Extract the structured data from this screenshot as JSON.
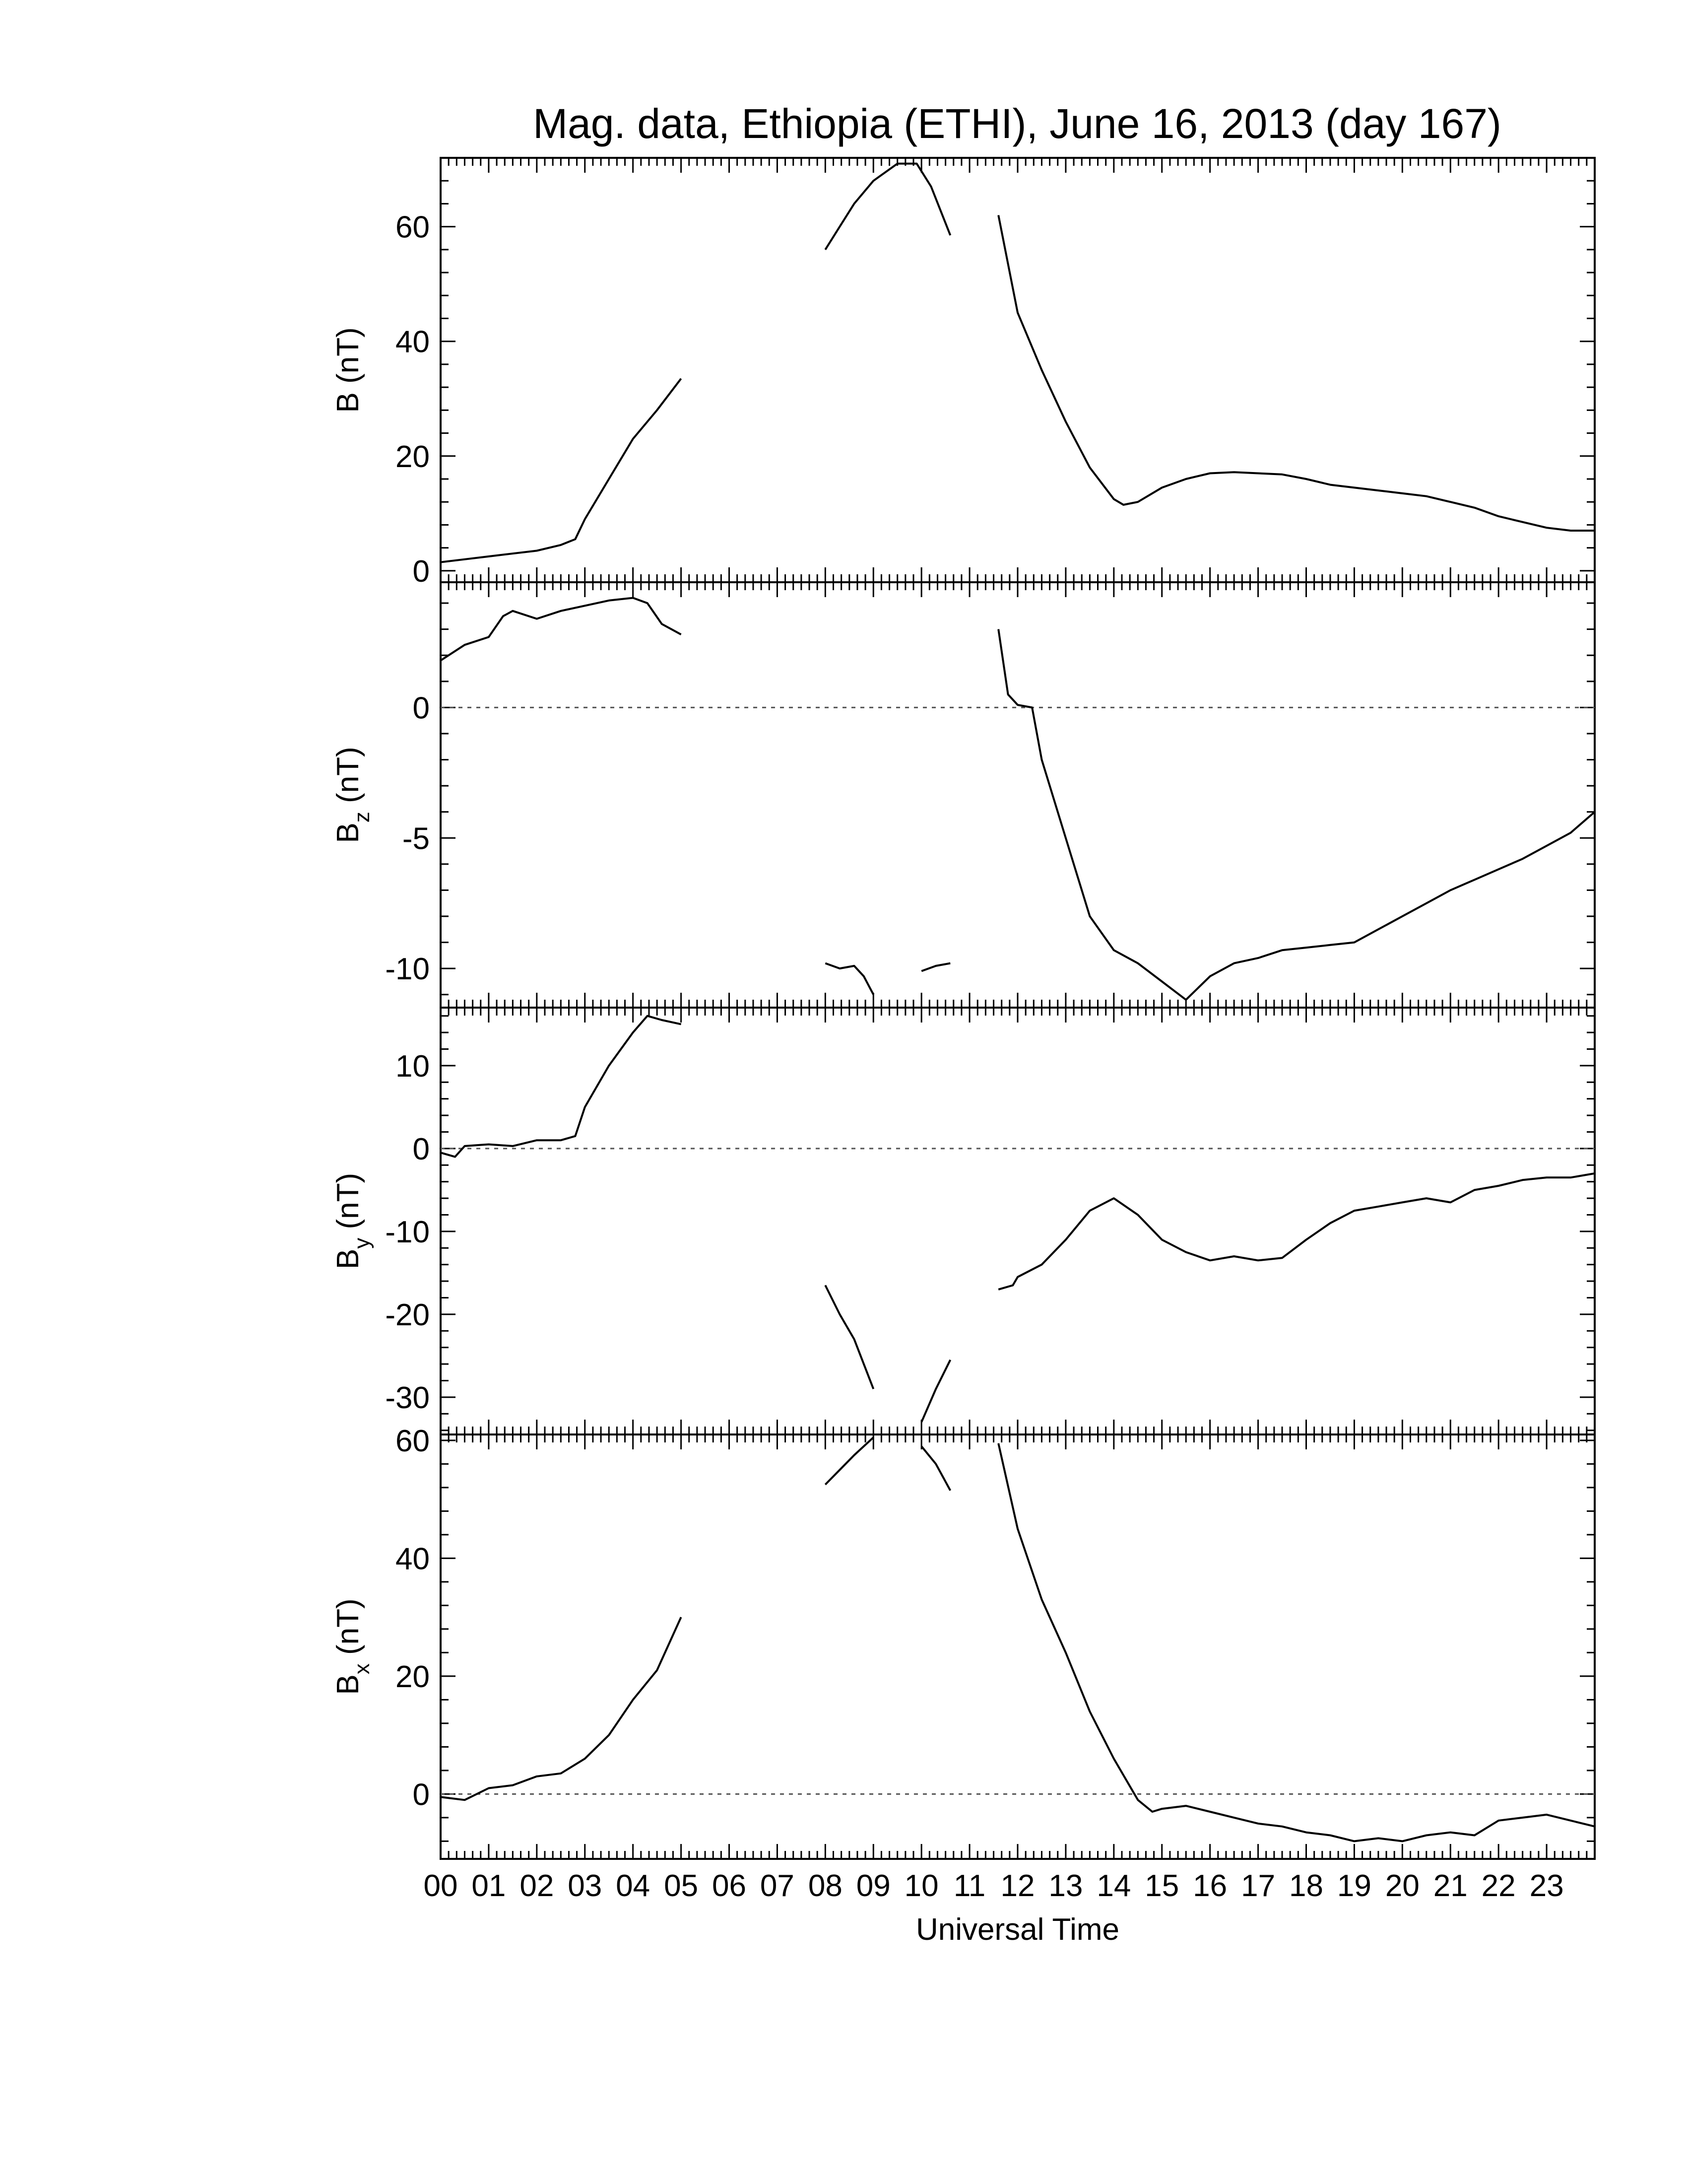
{
  "chart_data": {
    "type": "line",
    "title": "Mag. data, Ethiopia (ETHI), June 16, 2013 (day 167)",
    "xlabel": "Universal Time",
    "x_ticks": [
      "00",
      "01",
      "02",
      "03",
      "04",
      "05",
      "06",
      "07",
      "08",
      "09",
      "10",
      "11",
      "12",
      "13",
      "14",
      "15",
      "16",
      "17",
      "18",
      "19",
      "20",
      "21",
      "22",
      "23"
    ],
    "xlim": [
      0,
      24
    ],
    "panels": [
      {
        "name": "B",
        "ylabel": "B (nT)",
        "ylabel_main": "B (nT)",
        "ylabel_sub": "",
        "ylim": [
          -2,
          72
        ],
        "yticks": [
          0,
          20,
          40,
          60
        ],
        "zero_line": false,
        "segments": [
          [
            [
              0,
              1.5
            ],
            [
              0.5,
              2.0
            ],
            [
              1.0,
              2.5
            ],
            [
              1.5,
              3.0
            ],
            [
              2.0,
              3.5
            ],
            [
              2.5,
              4.5
            ],
            [
              2.8,
              5.5
            ],
            [
              3.0,
              9.0
            ],
            [
              3.5,
              16.0
            ],
            [
              4.0,
              23.0
            ],
            [
              4.5,
              28.0
            ],
            [
              5.0,
              33.5
            ]
          ],
          [
            [
              8.0,
              56.0
            ],
            [
              8.3,
              60.0
            ],
            [
              8.6,
              64.0
            ],
            [
              9.0,
              68.0
            ],
            [
              9.5,
              71.0
            ],
            [
              9.9,
              71.0
            ],
            [
              10.2,
              67.0
            ],
            [
              10.6,
              58.5
            ]
          ],
          [
            [
              11.6,
              62.0
            ],
            [
              12.0,
              45.0
            ],
            [
              12.5,
              35.0
            ],
            [
              13.0,
              26.0
            ],
            [
              13.5,
              18.0
            ],
            [
              14.0,
              12.5
            ],
            [
              14.2,
              11.5
            ],
            [
              14.5,
              12.0
            ],
            [
              15.0,
              14.5
            ],
            [
              15.5,
              16.0
            ],
            [
              16.0,
              17.0
            ],
            [
              16.5,
              17.2
            ],
            [
              17.0,
              17.0
            ],
            [
              17.5,
              16.8
            ],
            [
              18.0,
              16.0
            ],
            [
              18.5,
              15.0
            ],
            [
              19.0,
              14.5
            ],
            [
              19.5,
              14.0
            ],
            [
              20.0,
              13.5
            ],
            [
              20.5,
              13.0
            ],
            [
              21.0,
              12.0
            ],
            [
              21.5,
              11.0
            ],
            [
              22.0,
              9.5
            ],
            [
              22.5,
              8.5
            ],
            [
              23.0,
              7.5
            ],
            [
              23.5,
              7.0
            ],
            [
              24.0,
              7.0
            ]
          ]
        ]
      },
      {
        "name": "Bz",
        "ylabel": "Bz (nT)",
        "ylabel_main": "B",
        "ylabel_sub": "z",
        "ylabel_rest": " (nT)",
        "ylim": [
          -11.5,
          4.8
        ],
        "yticks": [
          -10,
          -5,
          0
        ],
        "zero_line": true,
        "segments": [
          [
            [
              0,
              1.8
            ],
            [
              0.5,
              2.4
            ],
            [
              1.0,
              2.7
            ],
            [
              1.3,
              3.5
            ],
            [
              1.5,
              3.7
            ],
            [
              2.0,
              3.4
            ],
            [
              2.5,
              3.7
            ],
            [
              3.0,
              3.9
            ],
            [
              3.5,
              4.1
            ],
            [
              4.0,
              4.2
            ],
            [
              4.3,
              4.0
            ],
            [
              4.6,
              3.2
            ],
            [
              5.0,
              2.8
            ]
          ],
          [
            [
              8.0,
              -9.8
            ],
            [
              8.3,
              -10.0
            ],
            [
              8.6,
              -9.9
            ],
            [
              8.8,
              -10.3
            ],
            [
              9.0,
              -11.0
            ]
          ],
          [
            [
              10.0,
              -10.1
            ],
            [
              10.3,
              -9.9
            ],
            [
              10.6,
              -9.8
            ]
          ],
          [
            [
              11.6,
              3.0
            ],
            [
              11.8,
              0.5
            ],
            [
              12.0,
              0.1
            ],
            [
              12.3,
              0.0
            ],
            [
              12.5,
              -2.0
            ],
            [
              13.0,
              -5.0
            ],
            [
              13.5,
              -8.0
            ],
            [
              14.0,
              -9.3
            ],
            [
              14.5,
              -9.8
            ],
            [
              15.0,
              -10.5
            ],
            [
              15.5,
              -11.2
            ],
            [
              16.0,
              -10.3
            ],
            [
              16.5,
              -9.8
            ],
            [
              17.0,
              -9.6
            ],
            [
              17.5,
              -9.3
            ],
            [
              18.0,
              -9.2
            ],
            [
              18.5,
              -9.1
            ],
            [
              19.0,
              -9.0
            ],
            [
              19.5,
              -8.5
            ],
            [
              20.0,
              -8.0
            ],
            [
              20.5,
              -7.5
            ],
            [
              21.0,
              -7.0
            ],
            [
              21.5,
              -6.6
            ],
            [
              22.0,
              -6.2
            ],
            [
              22.5,
              -5.8
            ],
            [
              23.0,
              -5.3
            ],
            [
              23.5,
              -4.8
            ],
            [
              24.0,
              -4.0
            ]
          ]
        ]
      },
      {
        "name": "By",
        "ylabel": "By (nT)",
        "ylabel_main": "B",
        "ylabel_sub": "y",
        "ylabel_rest": " (nT)",
        "ylim": [
          -34.5,
          17
        ],
        "yticks": [
          -30,
          -20,
          -10,
          0,
          10
        ],
        "zero_line": true,
        "segments": [
          [
            [
              0,
              -0.5
            ],
            [
              0.3,
              -1.0
            ],
            [
              0.5,
              0.3
            ],
            [
              1.0,
              0.5
            ],
            [
              1.5,
              0.3
            ],
            [
              2.0,
              1.0
            ],
            [
              2.5,
              1.0
            ],
            [
              2.8,
              1.5
            ],
            [
              3.0,
              5.0
            ],
            [
              3.5,
              10.0
            ],
            [
              4.0,
              14.0
            ],
            [
              4.3,
              16.0
            ],
            [
              4.6,
              15.5
            ],
            [
              5.0,
              15.0
            ]
          ],
          [
            [
              8.0,
              -16.5
            ],
            [
              8.3,
              -20.0
            ],
            [
              8.6,
              -23.0
            ],
            [
              9.0,
              -29.0
            ]
          ],
          [
            [
              10.0,
              -33.0
            ],
            [
              10.3,
              -29.0
            ],
            [
              10.6,
              -25.5
            ]
          ],
          [
            [
              11.6,
              -17.0
            ],
            [
              11.9,
              -16.5
            ],
            [
              12.0,
              -15.5
            ],
            [
              12.5,
              -14.0
            ],
            [
              13.0,
              -11.0
            ],
            [
              13.5,
              -7.5
            ],
            [
              14.0,
              -6.0
            ],
            [
              14.5,
              -8.0
            ],
            [
              15.0,
              -11.0
            ],
            [
              15.5,
              -12.5
            ],
            [
              16.0,
              -13.5
            ],
            [
              16.5,
              -13.0
            ],
            [
              17.0,
              -13.5
            ],
            [
              17.5,
              -13.2
            ],
            [
              18.0,
              -11.0
            ],
            [
              18.5,
              -9.0
            ],
            [
              19.0,
              -7.5
            ],
            [
              19.5,
              -7.0
            ],
            [
              20.0,
              -6.5
            ],
            [
              20.5,
              -6.0
            ],
            [
              21.0,
              -6.5
            ],
            [
              21.5,
              -5.0
            ],
            [
              22.0,
              -4.5
            ],
            [
              22.5,
              -3.8
            ],
            [
              23.0,
              -3.5
            ],
            [
              23.5,
              -3.5
            ],
            [
              24.0,
              -3.0
            ]
          ]
        ]
      },
      {
        "name": "Bx",
        "ylabel": "Bx (nT)",
        "ylabel_main": "B",
        "ylabel_sub": "x",
        "ylabel_rest": " (nT)",
        "ylim": [
          -11,
          61
        ],
        "yticks": [
          0,
          20,
          40,
          60
        ],
        "zero_line": true,
        "segments": [
          [
            [
              0,
              -0.5
            ],
            [
              0.5,
              -1.0
            ],
            [
              1.0,
              1.0
            ],
            [
              1.5,
              1.5
            ],
            [
              2.0,
              3.0
            ],
            [
              2.5,
              3.5
            ],
            [
              3.0,
              6.0
            ],
            [
              3.5,
              10.0
            ],
            [
              4.0,
              16.0
            ],
            [
              4.5,
              21.0
            ],
            [
              5.0,
              30.0
            ]
          ],
          [
            [
              8.0,
              52.5
            ],
            [
              8.3,
              55.0
            ],
            [
              8.6,
              57.5
            ],
            [
              9.0,
              60.5
            ]
          ],
          [
            [
              10.0,
              59.0
            ],
            [
              10.3,
              56.0
            ],
            [
              10.6,
              51.5
            ]
          ],
          [
            [
              11.6,
              59.5
            ],
            [
              12.0,
              45.0
            ],
            [
              12.5,
              33.0
            ],
            [
              13.0,
              24.0
            ],
            [
              13.5,
              14.0
            ],
            [
              14.0,
              6.0
            ],
            [
              14.5,
              -1.0
            ],
            [
              14.8,
              -3.0
            ],
            [
              15.0,
              -2.5
            ],
            [
              15.5,
              -2.0
            ],
            [
              16.0,
              -3.0
            ],
            [
              16.5,
              -4.0
            ],
            [
              17.0,
              -5.0
            ],
            [
              17.5,
              -5.5
            ],
            [
              18.0,
              -6.5
            ],
            [
              18.5,
              -7.0
            ],
            [
              19.0,
              -8.0
            ],
            [
              19.5,
              -7.5
            ],
            [
              20.0,
              -8.0
            ],
            [
              20.5,
              -7.0
            ],
            [
              21.0,
              -6.5
            ],
            [
              21.5,
              -7.0
            ],
            [
              22.0,
              -4.5
            ],
            [
              22.5,
              -4.0
            ],
            [
              23.0,
              -3.5
            ],
            [
              23.5,
              -4.5
            ],
            [
              24.0,
              -5.5
            ]
          ]
        ]
      }
    ]
  }
}
